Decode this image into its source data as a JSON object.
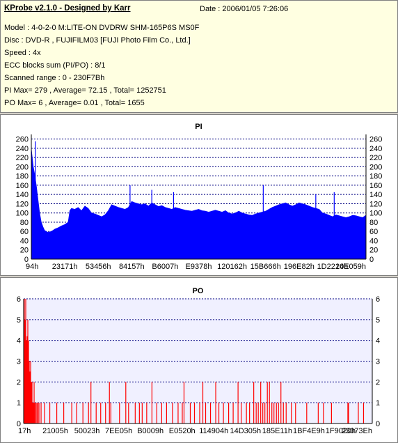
{
  "header": {
    "title": "KProbe v2.1.0 - Designed by Karr",
    "date": "Date : 2006/01/05 7:26:06",
    "lines": [
      "Model : 4-0-2-0 M:LITE-ON DVDRW SHM-165P6S MS0F",
      "Disc : DVD-R , FUJIFILM03 [FUJI Photo Film Co., Ltd.]",
      "Speed : 4x",
      "ECC blocks sum (PI/PO) : 8/1",
      "Scanned range : 0 - 230F7Bh",
      "PI Max= 279 , Average= 72.15 , Total= 1252751",
      "PO Max= 6 , Average= 0.01 , Total= 1655"
    ]
  },
  "colors": {
    "pi_fill": "#0000ff",
    "po_bar": "#ff0000",
    "grid": "#000080",
    "plot_bg_po": "#f0f0ff",
    "info_bg": "#ffffe1"
  },
  "chart_data": [
    {
      "type": "area",
      "title": "PI",
      "ylim": [
        0,
        270
      ],
      "yticks": [
        0,
        20,
        40,
        60,
        80,
        100,
        120,
        140,
        160,
        180,
        200,
        220,
        240,
        260
      ],
      "xlim": [
        0,
        100
      ],
      "xtick_labels": [
        "94h",
        "23171h",
        "53456h",
        "84157h",
        "B6007h",
        "E9378h",
        "120162h",
        "15B666h",
        "196E82h",
        "1D2214h",
        "20E059h"
      ],
      "series": [
        {
          "x": [
            0,
            0.3,
            0.6,
            1,
            1.5,
            2,
            2.5,
            3,
            3.5,
            4,
            5,
            6,
            7,
            8,
            9,
            10,
            11,
            11.5,
            12,
            13,
            14,
            15,
            16,
            17,
            18,
            19,
            20,
            21,
            22,
            23,
            24,
            25,
            26,
            27,
            28,
            29,
            30,
            31,
            32,
            33,
            34,
            35,
            36,
            37,
            38,
            39,
            40,
            41,
            42,
            43,
            44,
            45,
            46,
            47,
            48,
            49,
            50,
            51,
            52,
            53,
            54,
            55,
            56,
            57,
            58,
            59,
            60,
            61,
            62,
            63,
            64,
            65,
            66,
            67,
            68,
            69,
            70,
            71,
            72,
            73,
            74,
            75,
            76,
            77,
            78,
            79,
            80,
            81,
            82,
            83,
            84,
            85,
            86,
            87,
            88,
            89,
            90,
            91,
            92,
            93,
            94,
            95,
            96,
            97,
            98,
            99,
            100
          ],
          "y": [
            240,
            220,
            200,
            185,
            160,
            130,
            100,
            80,
            70,
            62,
            58,
            60,
            65,
            68,
            72,
            75,
            80,
            105,
            110,
            108,
            112,
            105,
            115,
            110,
            100,
            98,
            95,
            92,
            96,
            105,
            118,
            115,
            112,
            110,
            108,
            112,
            125,
            122,
            120,
            118,
            120,
            115,
            122,
            118,
            114,
            116,
            112,
            110,
            108,
            112,
            110,
            108,
            106,
            105,
            104,
            106,
            108,
            105,
            104,
            102,
            104,
            106,
            104,
            102,
            105,
            100,
            98,
            100,
            104,
            100,
            98,
            96,
            95,
            98,
            100,
            102,
            104,
            108,
            112,
            115,
            118,
            120,
            122,
            118,
            115,
            118,
            122,
            120,
            118,
            115,
            112,
            110,
            108,
            100,
            98,
            95,
            92,
            96,
            94,
            92,
            90,
            92,
            95,
            94,
            92,
            90,
            95
          ]
        }
      ],
      "spikes": [
        {
          "x": 1.2,
          "y": 255
        },
        {
          "x": 29.5,
          "y": 160
        },
        {
          "x": 36,
          "y": 150
        },
        {
          "x": 42.5,
          "y": 145
        },
        {
          "x": 69.3,
          "y": 160
        },
        {
          "x": 85,
          "y": 140
        },
        {
          "x": 90.5,
          "y": 145
        }
      ]
    },
    {
      "type": "bar",
      "title": "PO",
      "ylim": [
        0,
        6
      ],
      "yticks": [
        0,
        1,
        2,
        3,
        4,
        5,
        6
      ],
      "xlim": [
        0,
        100
      ],
      "xtick_labels": [
        "17h",
        "21005h",
        "50023h",
        "7EE05h",
        "B0009h",
        "E0520h",
        "114904h",
        "14D305h",
        "185E11h",
        "1BF4E9h",
        "1F9020h",
        "23073Eh"
      ],
      "series": [
        {
          "x": [
            0.2,
            0.4,
            0.6,
            0.8,
            1.0,
            1.2,
            1.4,
            1.6,
            1.8,
            2.0,
            2.2,
            2.4,
            2.6,
            2.8,
            3.0,
            3.2,
            3.5,
            3.8,
            4.1,
            4.4,
            5.0,
            6.0,
            7.5,
            9.5,
            11.5,
            13.8,
            15.2,
            17.0,
            18.6,
            19.3,
            20.8,
            22.1,
            23.5,
            24.6,
            25.0,
            27.5,
            29.3,
            30.1,
            32.0,
            33.2,
            34.0,
            35.3,
            36.8,
            38.2,
            39.6,
            41.0,
            42.7,
            44.3,
            45.5,
            46.0,
            47.8,
            49.0,
            50.5,
            51.4,
            52.2,
            53.6,
            55.1,
            56.0,
            57.3,
            58.8,
            60.1,
            61.5,
            62.4,
            63.9,
            64.8,
            66.0,
            66.7,
            67.3,
            68.0,
            68.6,
            69.2,
            69.9,
            70.5,
            71.2,
            71.8,
            72.5,
            73.1,
            73.8,
            74.5,
            75.3,
            76.8,
            78.0,
            81.2,
            84.5,
            86.0,
            88.3,
            93.0,
            93.2,
            96.0,
            97.5
          ],
          "y": [
            6,
            5,
            6,
            4,
            4.2,
            5,
            4,
            3,
            2.5,
            3,
            2,
            2,
            1,
            1,
            2,
            1,
            1,
            1,
            1,
            1,
            1,
            1,
            1,
            1,
            1,
            1,
            1,
            1,
            1,
            2,
            1,
            1,
            1,
            2,
            1,
            1,
            2,
            1,
            1,
            1,
            1,
            1,
            2,
            1,
            1,
            1,
            1,
            1,
            1,
            2,
            1,
            1,
            1,
            2,
            1,
            1,
            2,
            1,
            1,
            1,
            1,
            2,
            1,
            1,
            1,
            2,
            1,
            1,
            2,
            1,
            1,
            2,
            2,
            1,
            1,
            1,
            1,
            2,
            1,
            1,
            1,
            1,
            1,
            1,
            1,
            1,
            1,
            1,
            1,
            1
          ]
        }
      ]
    }
  ]
}
